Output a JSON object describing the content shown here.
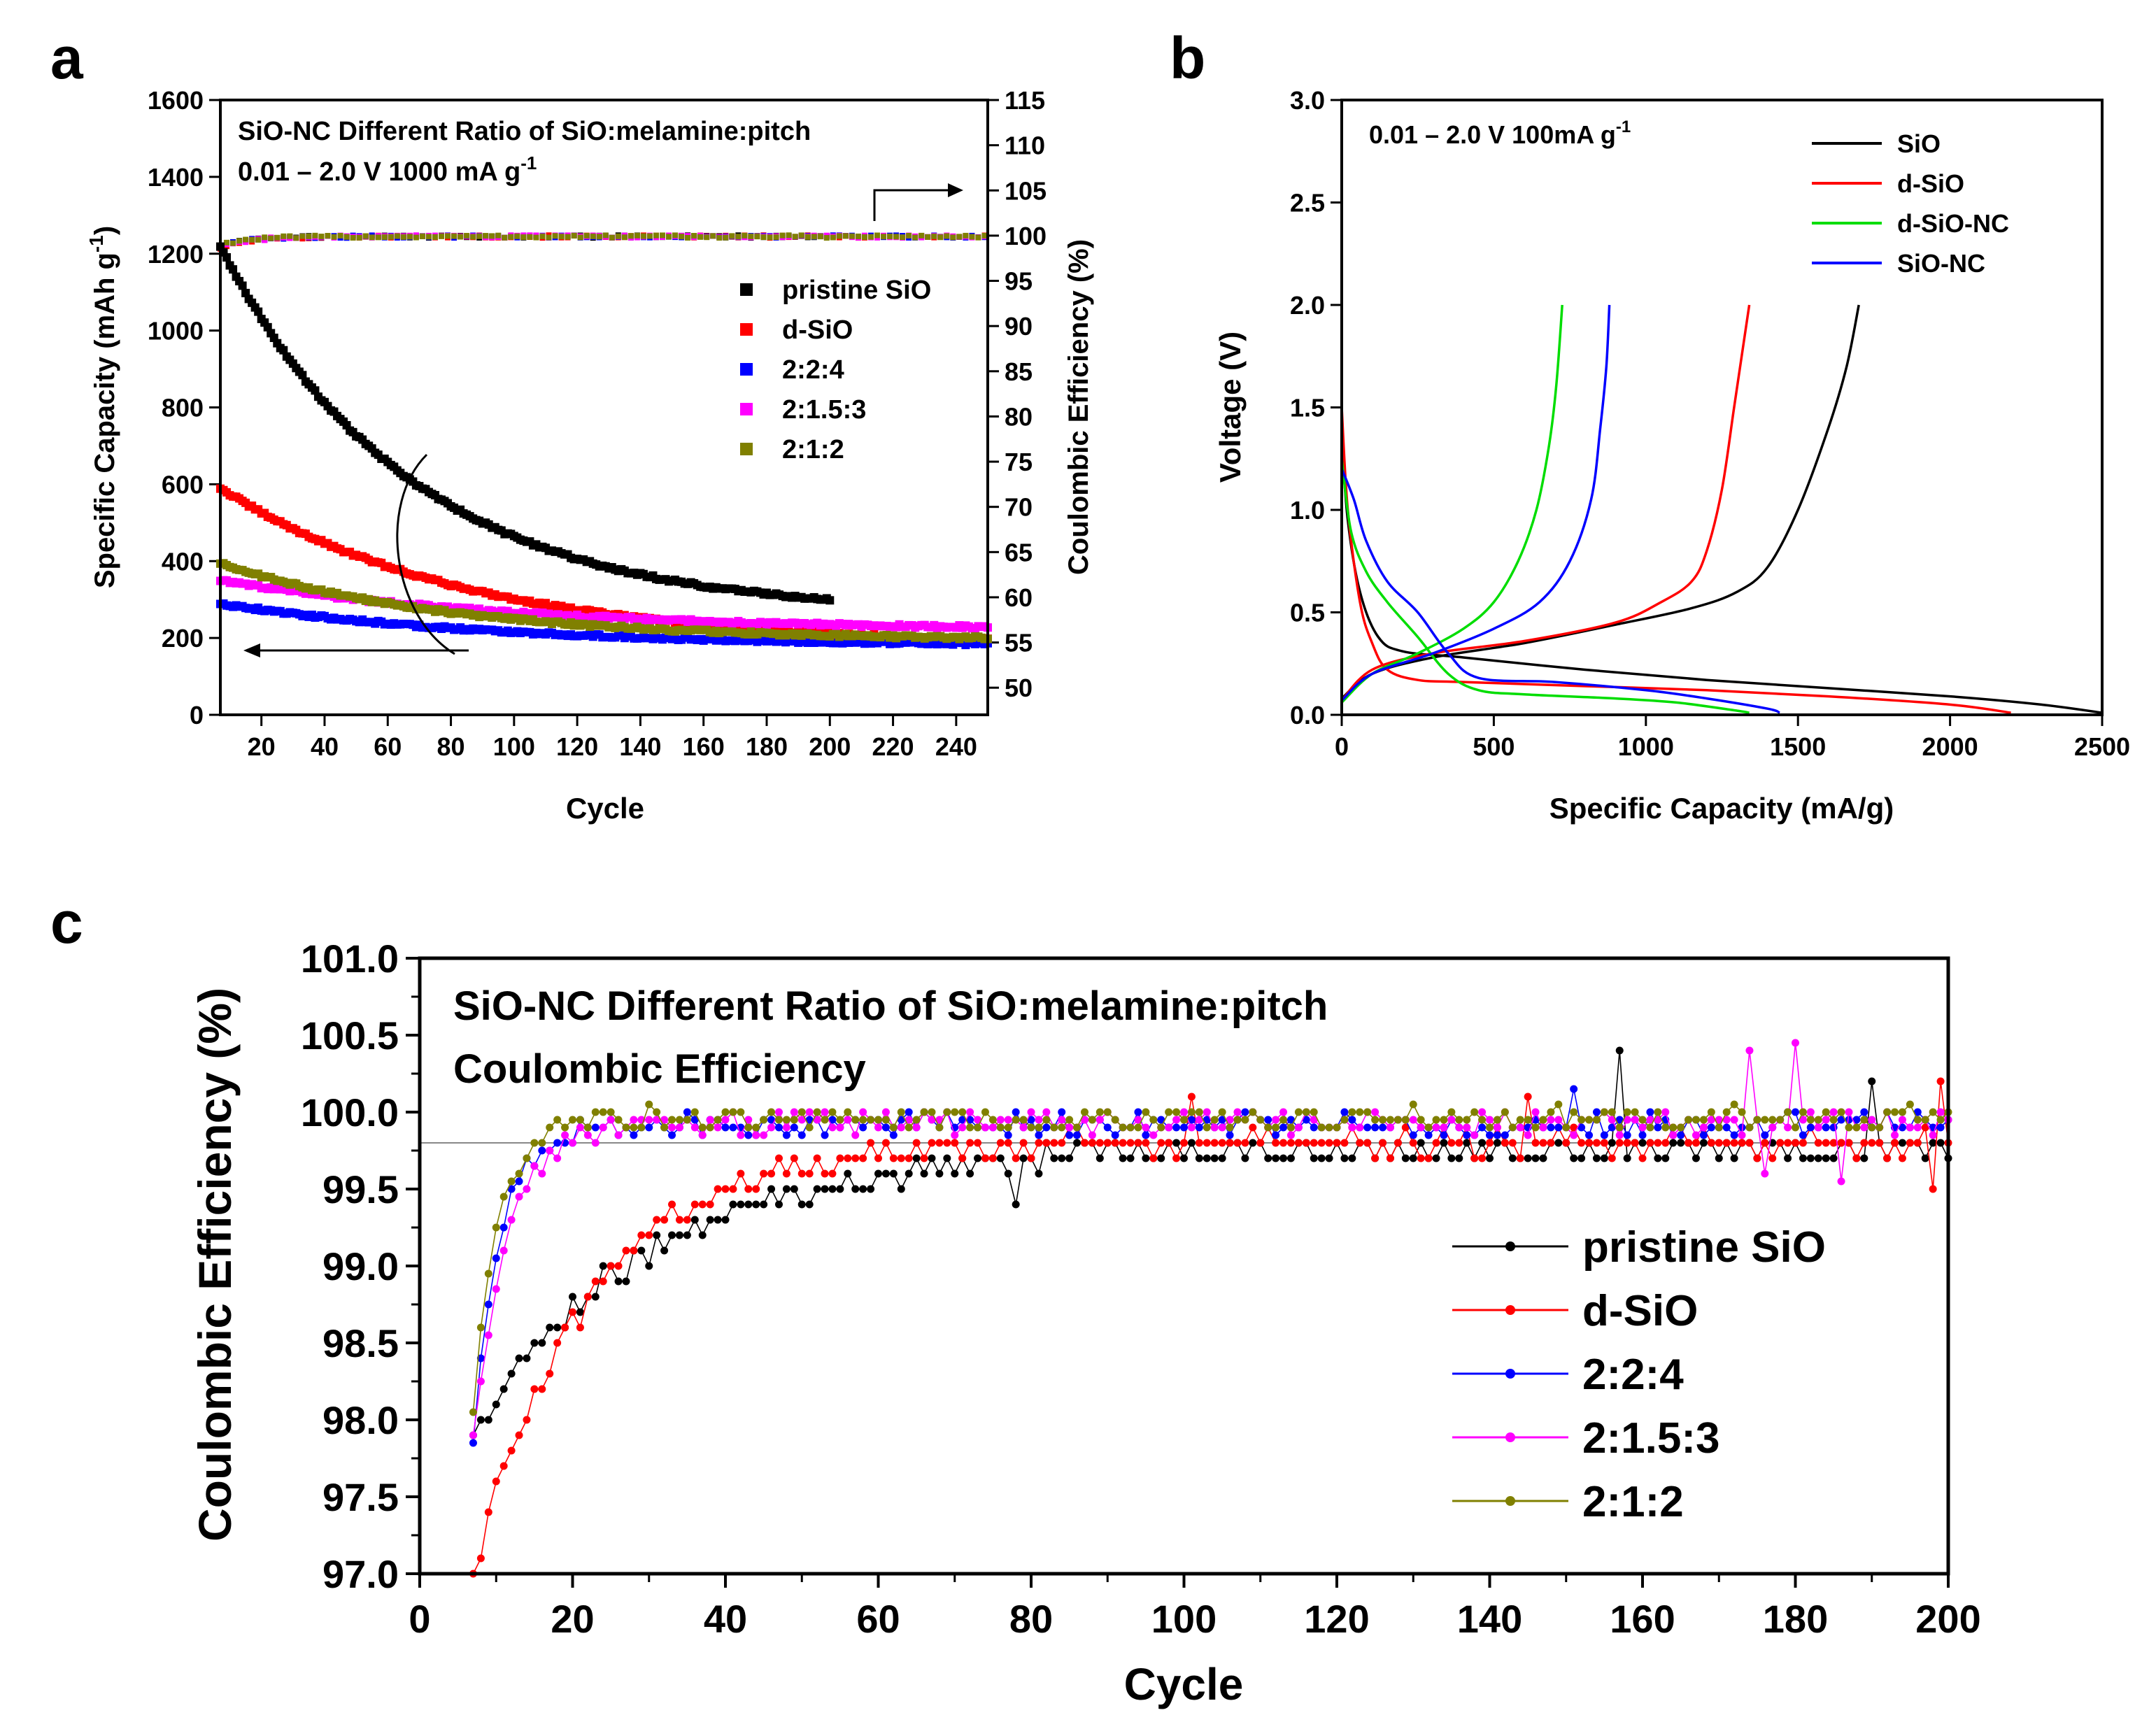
{
  "chart_data": [
    {
      "id": "a",
      "panel_letter": "a",
      "type": "scatter",
      "title_lines": [
        "SiO-NC Different Ratio of SiO:melamine:pitch",
        "0.01 – 2.0 V 1000 mA g"
      ],
      "title_superscript": "-1",
      "xlabel": "Cycle",
      "ylabel": "Specific Capacity (mAh g",
      "ylabel_superscript": "-1",
      "ylabel_suffix": ")",
      "y2label": "Coulombic Efficiency (%)",
      "xlim": [
        7,
        250
      ],
      "ylim": [
        0,
        1600
      ],
      "y2lim": [
        47,
        115
      ],
      "xticks": [
        20,
        40,
        60,
        80,
        100,
        120,
        140,
        160,
        180,
        200,
        220,
        240
      ],
      "yticks": [
        0,
        200,
        400,
        600,
        800,
        1000,
        1200,
        1400,
        1600
      ],
      "y2ticks": [
        50,
        55,
        60,
        65,
        70,
        75,
        80,
        85,
        90,
        95,
        100,
        105,
        110,
        115
      ],
      "legend_position": "center-right",
      "series": [
        {
          "name": "pristine SiO",
          "color": "#000000",
          "x_range": [
            7,
            200
          ],
          "capacity": {
            "start": 1220,
            "end": 300,
            "shape": 1.35
          },
          "ce": {
            "start": 99.0,
            "end": 99.9
          }
        },
        {
          "name": "d-SiO",
          "color": "#ff0000",
          "x_range": [
            7,
            250
          ],
          "capacity": {
            "start": 590,
            "end": 195,
            "shape": 1.3
          },
          "ce": {
            "start": 98.6,
            "end": 99.9
          }
        },
        {
          "name": "2:2:4",
          "color": "#0000ff",
          "x_range": [
            7,
            250
          ],
          "capacity": {
            "start": 290,
            "end": 185,
            "shape": 1.2
          },
          "ce": {
            "start": 98.9,
            "end": 99.9
          }
        },
        {
          "name": "2:1.5:3",
          "color": "#ff00ff",
          "x_range": [
            7,
            250
          ],
          "capacity": {
            "start": 350,
            "end": 228,
            "shape": 1.1
          },
          "ce": {
            "start": 98.8,
            "end": 99.9
          }
        },
        {
          "name": "2:1:2",
          "color": "#808000",
          "x_range": [
            7,
            250
          ],
          "capacity": {
            "start": 395,
            "end": 200,
            "shape": 1.4
          },
          "ce": {
            "start": 99.0,
            "end": 99.9
          }
        }
      ]
    },
    {
      "id": "b",
      "panel_letter": "b",
      "type": "line",
      "title": "0.01 – 2.0 V 100mA g",
      "title_superscript": "-1",
      "xlabel": "Specific Capacity (mA/g)",
      "ylabel": "Voltage (V)",
      "xlim": [
        0,
        2500
      ],
      "ylim": [
        0,
        3.0
      ],
      "xticks": [
        0,
        500,
        1000,
        1500,
        2000,
        2500
      ],
      "yticks": [
        0.0,
        0.5,
        1.0,
        1.5,
        2.0,
        2.5,
        3.0
      ],
      "legend_position": "top-right",
      "series": [
        {
          "name": "SiO",
          "color": "#000000",
          "discharge": [
            [
              0,
              1.35
            ],
            [
              20,
              0.95
            ],
            [
              60,
              0.6
            ],
            [
              120,
              0.38
            ],
            [
              200,
              0.31
            ],
            [
              400,
              0.28
            ],
            [
              800,
              0.22
            ],
            [
              1200,
              0.17
            ],
            [
              1600,
              0.13
            ],
            [
              2000,
              0.09
            ],
            [
              2300,
              0.05
            ],
            [
              2500,
              0.01
            ]
          ],
          "charge": [
            [
              0,
              0.08
            ],
            [
              100,
              0.2
            ],
            [
              300,
              0.28
            ],
            [
              600,
              0.35
            ],
            [
              900,
              0.44
            ],
            [
              1150,
              0.52
            ],
            [
              1300,
              0.6
            ],
            [
              1400,
              0.72
            ],
            [
              1500,
              1.0
            ],
            [
              1600,
              1.4
            ],
            [
              1660,
              1.7
            ],
            [
              1700,
              2.0
            ]
          ]
        },
        {
          "name": "d-SiO",
          "color": "#ff0000",
          "discharge": [
            [
              0,
              1.5
            ],
            [
              20,
              1.0
            ],
            [
              60,
              0.55
            ],
            [
              100,
              0.35
            ],
            [
              150,
              0.22
            ],
            [
              250,
              0.17
            ],
            [
              400,
              0.16
            ],
            [
              800,
              0.14
            ],
            [
              1200,
              0.12
            ],
            [
              1600,
              0.09
            ],
            [
              2000,
              0.05
            ],
            [
              2200,
              0.01
            ]
          ],
          "charge": [
            [
              0,
              0.07
            ],
            [
              100,
              0.22
            ],
            [
              300,
              0.3
            ],
            [
              600,
              0.36
            ],
            [
              900,
              0.45
            ],
            [
              1050,
              0.55
            ],
            [
              1150,
              0.65
            ],
            [
              1200,
              0.8
            ],
            [
              1250,
              1.1
            ],
            [
              1290,
              1.5
            ],
            [
              1320,
              1.8
            ],
            [
              1340,
              2.0
            ]
          ]
        },
        {
          "name": "d-SiO-NC",
          "color": "#00dd00",
          "discharge": [
            [
              0,
              1.25
            ],
            [
              30,
              0.9
            ],
            [
              80,
              0.7
            ],
            [
              150,
              0.55
            ],
            [
              250,
              0.38
            ],
            [
              350,
              0.2
            ],
            [
              450,
              0.12
            ],
            [
              600,
              0.1
            ],
            [
              900,
              0.08
            ],
            [
              1100,
              0.06
            ],
            [
              1300,
              0.02
            ],
            [
              1340,
              0.01
            ]
          ],
          "charge": [
            [
              0,
              0.06
            ],
            [
              100,
              0.2
            ],
            [
              250,
              0.3
            ],
            [
              400,
              0.42
            ],
            [
              500,
              0.55
            ],
            [
              580,
              0.75
            ],
            [
              640,
              1.0
            ],
            [
              680,
              1.3
            ],
            [
              705,
              1.6
            ],
            [
              725,
              2.0
            ]
          ]
        },
        {
          "name": "SiO-NC",
          "color": "#0000ff",
          "discharge": [
            [
              0,
              1.2
            ],
            [
              40,
              1.05
            ],
            [
              80,
              0.85
            ],
            [
              150,
              0.65
            ],
            [
              250,
              0.5
            ],
            [
              350,
              0.3
            ],
            [
              450,
              0.18
            ],
            [
              700,
              0.16
            ],
            [
              1000,
              0.12
            ],
            [
              1200,
              0.08
            ],
            [
              1400,
              0.03
            ],
            [
              1440,
              0.01
            ]
          ],
          "charge": [
            [
              0,
              0.07
            ],
            [
              100,
              0.2
            ],
            [
              300,
              0.3
            ],
            [
              500,
              0.42
            ],
            [
              650,
              0.55
            ],
            [
              750,
              0.75
            ],
            [
              820,
              1.05
            ],
            [
              850,
              1.4
            ],
            [
              870,
              1.7
            ],
            [
              880,
              2.0
            ]
          ]
        }
      ]
    },
    {
      "id": "c",
      "panel_letter": "c",
      "type": "line",
      "title_lines": [
        "SiO-NC Different Ratio of SiO:melamine:pitch",
        "Coulombic Efficiency"
      ],
      "xlabel": "Cycle",
      "ylabel": "Coulombic Efficiency (%)",
      "xlim": [
        0,
        200
      ],
      "ylim": [
        97.0,
        101.0
      ],
      "xticks": [
        0,
        20,
        40,
        60,
        80,
        100,
        120,
        140,
        160,
        180,
        200
      ],
      "yticks": [
        "97.0",
        "97.5",
        "98.0",
        "98.5",
        "99.0",
        "99.5",
        "100.0",
        "100.5",
        "101.0"
      ],
      "reference_line": 99.8,
      "legend_position": "bottom-right",
      "series": [
        {
          "name": "pristine SiO",
          "color": "#000000",
          "x_range": [
            7,
            200
          ],
          "start": 97.9,
          "plateau": 99.75,
          "tau": 22,
          "spikes": [
            [
              157,
              100.4
            ],
            [
              190,
              100.2
            ],
            [
              78,
              99.4
            ],
            [
              200,
              99.7
            ]
          ]
        },
        {
          "name": "d-SiO",
          "color": "#ff0000",
          "x_range": [
            7,
            200
          ],
          "start": 97.0,
          "plateau": 99.8,
          "tau": 15,
          "spikes": [
            [
              101,
              100.1
            ],
            [
              145,
              100.1
            ],
            [
              199,
              100.2
            ],
            [
              198,
              99.5
            ]
          ]
        },
        {
          "name": "2:2:4",
          "color": "#0000ff",
          "x_range": [
            7,
            200
          ],
          "start": 97.85,
          "plateau": 99.92,
          "tau": 3.5,
          "spikes": [
            [
              151,
              100.15
            ],
            [
              180,
              100.0
            ]
          ]
        },
        {
          "name": "2:1.5:3",
          "color": "#ff00ff",
          "x_range": [
            7,
            200
          ],
          "start": 97.9,
          "plateau": 99.93,
          "tau": 4.5,
          "spikes": [
            [
              174,
              100.38
            ],
            [
              180,
              100.44
            ],
            [
              176,
              99.6
            ],
            [
              186,
              99.55
            ]
          ]
        },
        {
          "name": "2:1:2",
          "color": "#808000",
          "x_range": [
            7,
            200
          ],
          "start": 98.05,
          "plateau": 99.96,
          "tau": 3.2,
          "spikes": [
            [
              74,
              100.02
            ]
          ]
        }
      ]
    }
  ]
}
